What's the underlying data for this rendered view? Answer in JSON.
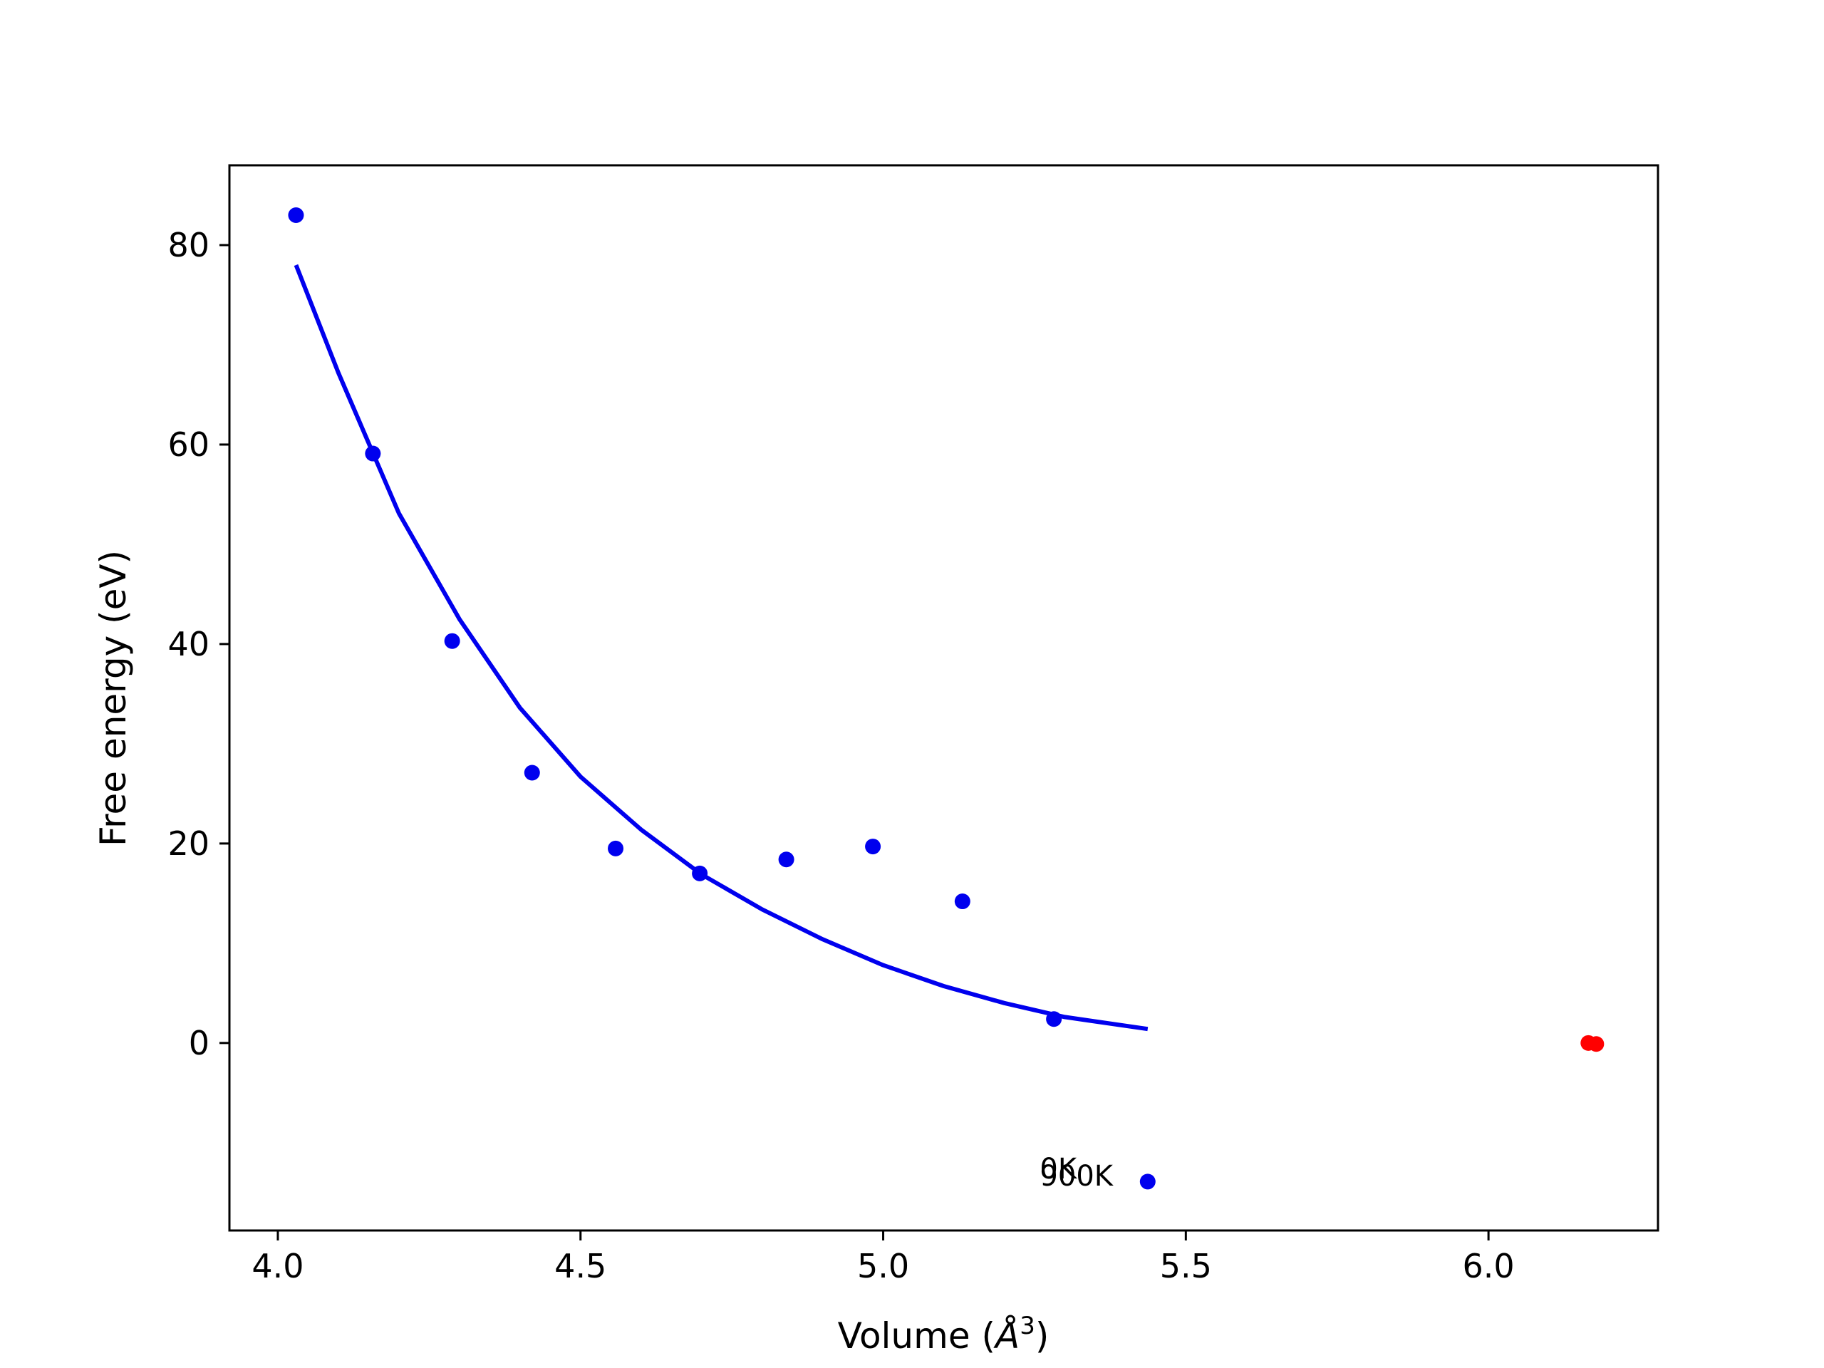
{
  "chart_data": {
    "type": "scatter",
    "xlabel": "Volume (Å³)",
    "xlabel_main": "Volume (",
    "xlabel_symbol": "Å",
    "xlabel_exponent": "3",
    "xlabel_close": ")",
    "ylabel": "Free energy (eV)",
    "xlim": [
      3.92,
      6.28
    ],
    "ylim": [
      -18.8,
      88
    ],
    "xticks": [
      "4.0",
      "4.5",
      "5.0",
      "5.5",
      "6.0"
    ],
    "xtick_values": [
      4.0,
      4.5,
      5.0,
      5.5,
      6.0
    ],
    "yticks": [
      "0",
      "20",
      "40",
      "60",
      "80"
    ],
    "ytick_values": [
      0,
      20,
      40,
      60,
      80
    ],
    "grid": false,
    "colors": {
      "points": "#0000ee",
      "fit": "#0000ee",
      "minimum": "#ff0000"
    },
    "series": [
      {
        "kind": "points",
        "x": [
          4.03,
          4.157,
          4.288,
          4.42,
          4.558,
          4.697,
          4.84,
          4.983,
          5.131,
          5.282,
          5.437
        ],
        "y": [
          83.0,
          59.1,
          40.3,
          27.1,
          19.5,
          17.0,
          18.4,
          19.7,
          14.2,
          2.4,
          -13.9
        ]
      },
      {
        "kind": "fit-curve",
        "x": [
          4.03,
          4.1,
          4.2,
          4.3,
          4.4,
          4.5,
          4.6,
          4.7,
          4.8,
          4.9,
          5.0,
          5.1,
          5.2,
          5.3,
          5.437
        ],
        "y": [
          78.0,
          67.2,
          53.1,
          42.5,
          33.6,
          26.7,
          21.4,
          16.9,
          13.4,
          10.4,
          7.8,
          5.7,
          4.0,
          2.6,
          1.4
        ]
      },
      {
        "kind": "minimum-points",
        "x": [
          6.165,
          6.178
        ],
        "y": [
          0.0,
          -0.1
        ]
      }
    ],
    "annotations": [
      {
        "text": "0K",
        "x": 5.28,
        "y": -12.6
      },
      {
        "text": "900K",
        "x": 5.28,
        "y": -13.3
      }
    ]
  }
}
